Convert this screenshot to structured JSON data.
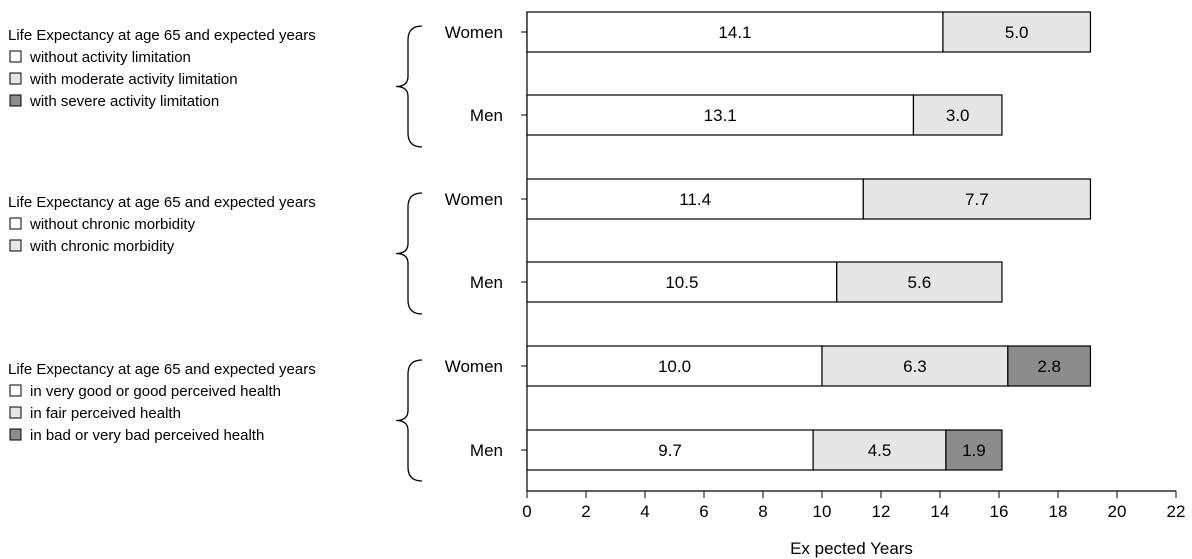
{
  "chart_data": {
    "type": "bar",
    "orientation": "horizontal",
    "stacked": true,
    "xlabel": "Ex pected Years",
    "xlim": [
      0,
      22
    ],
    "x_ticks": [
      "0",
      "2",
      "4",
      "6",
      "8",
      "10",
      "12",
      "14",
      "16",
      "18",
      "20",
      "22"
    ],
    "grid": false,
    "colors": {
      "white": "#ffffff",
      "light": "#e6e6e6",
      "dark": "#8c8c8c",
      "stroke": "#000000"
    },
    "groups": [
      {
        "legend_title": "Life Expectancy at age 65 and expected years",
        "legend_items": [
          {
            "label": "without activity limitation",
            "color": "white"
          },
          {
            "label": "with moderate activity limitation",
            "color": "light"
          },
          {
            "label": "with severe activity limitation",
            "color": "dark"
          }
        ],
        "bars": [
          {
            "category": "Women",
            "segments": [
              {
                "value": 14.1,
                "label": "14.1",
                "color": "white"
              },
              {
                "value": 5.0,
                "label": "5.0",
                "color": "light"
              }
            ]
          },
          {
            "category": "Men",
            "segments": [
              {
                "value": 13.1,
                "label": "13.1",
                "color": "white"
              },
              {
                "value": 3.0,
                "label": "3.0",
                "color": "light"
              }
            ]
          }
        ]
      },
      {
        "legend_title": "Life Expectancy at age 65 and expected years",
        "legend_items": [
          {
            "label": "without chronic morbidity",
            "color": "white"
          },
          {
            "label": "with chronic morbidity",
            "color": "light"
          }
        ],
        "bars": [
          {
            "category": "Women",
            "segments": [
              {
                "value": 11.4,
                "label": "11.4",
                "color": "white"
              },
              {
                "value": 7.7,
                "label": "7.7",
                "color": "light"
              }
            ]
          },
          {
            "category": "Men",
            "segments": [
              {
                "value": 10.5,
                "label": "10.5",
                "color": "white"
              },
              {
                "value": 5.6,
                "label": "5.6",
                "color": "light"
              }
            ]
          }
        ]
      },
      {
        "legend_title": "Life Expectancy at age 65 and expected years",
        "legend_items": [
          {
            "label": "in very good or good perceived health",
            "color": "white"
          },
          {
            "label": "in fair perceived health",
            "color": "light"
          },
          {
            "label": "in bad or very bad perceived health",
            "color": "dark"
          }
        ],
        "bars": [
          {
            "category": "Women",
            "segments": [
              {
                "value": 10.0,
                "label": "10.0",
                "color": "white"
              },
              {
                "value": 6.3,
                "label": "6.3",
                "color": "light"
              },
              {
                "value": 2.8,
                "label": "2.8",
                "color": "dark"
              }
            ]
          },
          {
            "category": "Men",
            "segments": [
              {
                "value": 9.7,
                "label": "9.7",
                "color": "white"
              },
              {
                "value": 4.5,
                "label": "4.5",
                "color": "light"
              },
              {
                "value": 1.9,
                "label": "1.9",
                "color": "dark"
              }
            ]
          }
        ]
      }
    ]
  }
}
